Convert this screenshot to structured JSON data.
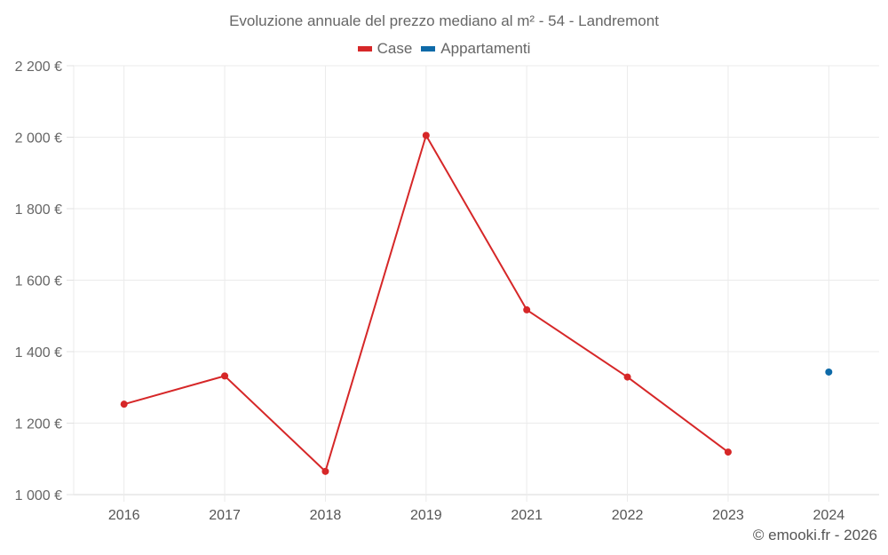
{
  "chart_data": {
    "type": "line",
    "title": "Evoluzione annuale del prezzo mediano al m² - 54 - Landremont",
    "xlabel": "",
    "ylabel": "",
    "categories": [
      "2016",
      "2017",
      "2018",
      "2019",
      "2021",
      "2022",
      "2023",
      "2024"
    ],
    "series": [
      {
        "name": "Case",
        "color": "#d62728",
        "values": [
          1253,
          1332,
          1065,
          2005,
          1517,
          1329,
          1119,
          null
        ]
      },
      {
        "name": "Appartamenti",
        "color": "#0e6aa8",
        "values": [
          null,
          null,
          null,
          null,
          null,
          null,
          null,
          1343
        ]
      }
    ],
    "ylim": [
      1000,
      2200
    ],
    "yticks": [
      1000,
      1200,
      1400,
      1600,
      1800,
      2000,
      2200
    ],
    "ytick_labels": [
      "1 000 €",
      "1 200 €",
      "1 400 €",
      "1 600 €",
      "1 800 €",
      "2 000 €",
      "2 200 €"
    ],
    "grid": true,
    "legend_position": "top"
  },
  "legend": [
    {
      "label": "Case",
      "color": "#d62728"
    },
    {
      "label": "Appartamenti",
      "color": "#0e6aa8"
    }
  ],
  "credit": "© emooki.fr - 2026"
}
